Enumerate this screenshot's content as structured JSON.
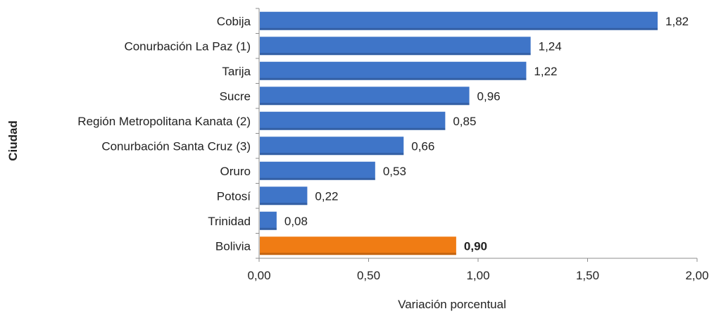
{
  "chart_data": {
    "type": "bar",
    "orientation": "horizontal",
    "title": "",
    "xlabel": "Variación porcentual",
    "ylabel": "Ciudad",
    "xlim": [
      0,
      2
    ],
    "xticks": [
      "0,00",
      "0,50",
      "1,00",
      "1,50",
      "2,00"
    ],
    "xtick_values": [
      0,
      0.5,
      1,
      1.5,
      2
    ],
    "grid": false,
    "legend": "none",
    "categories": [
      "Cobija",
      "Conurbación La Paz (1)",
      "Tarija",
      "Sucre",
      "Región Metropolitana Kanata (2)",
      "Conurbación Santa Cruz (3)",
      "Oruro",
      "Potosí",
      "Trinidad",
      "Bolivia"
    ],
    "values": [
      1.82,
      1.24,
      1.22,
      0.96,
      0.85,
      0.66,
      0.53,
      0.22,
      0.08,
      0.9
    ],
    "value_labels": [
      "1,82",
      "1,24",
      "1,22",
      "0,96",
      "0,85",
      "0,66",
      "0,53",
      "0,22",
      "0,08",
      "0,90"
    ],
    "highlight_index": 9,
    "colors": {
      "bar": "#3f75c8",
      "highlight": "#f07c14",
      "axis": "#8c8c8c"
    }
  }
}
